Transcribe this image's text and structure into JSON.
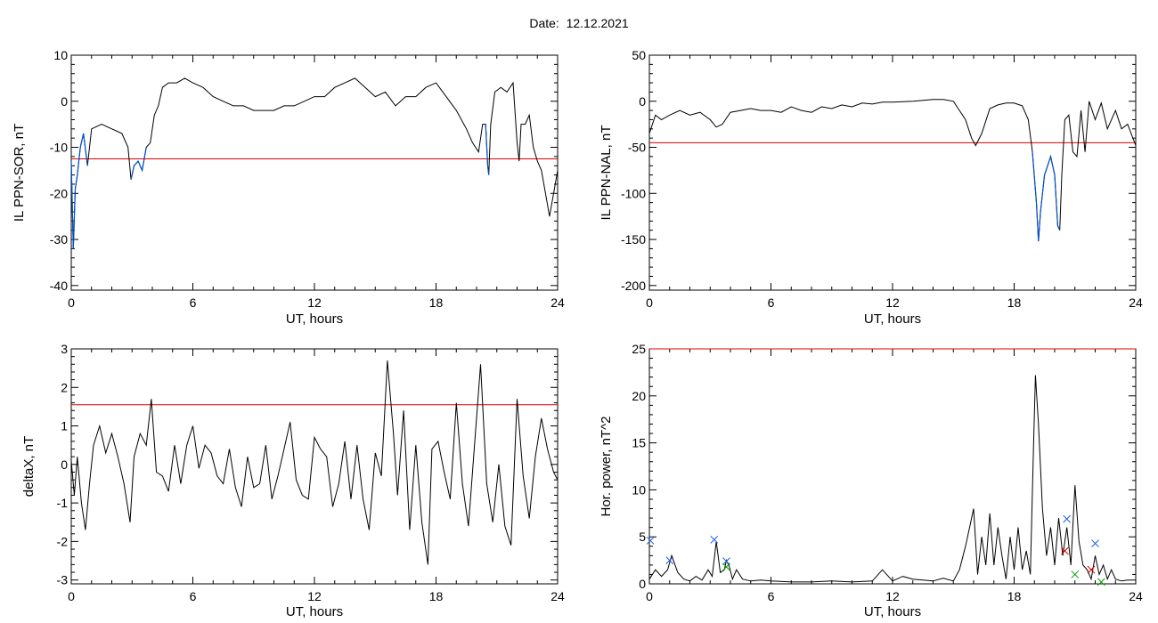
{
  "page": {
    "title": "Date:  12.12.2021"
  },
  "colors": {
    "trace": "#000000",
    "threshold": "#e00000",
    "highlight": "#0050c8",
    "marker_blue": "#2060e0",
    "marker_red": "#e00000",
    "marker_green": "#00a000"
  },
  "chart_data": [
    {
      "type": "line",
      "xlabel": "UT, hours",
      "ylabel": "IL PPN-SOR, nT",
      "xlim": [
        0,
        24
      ],
      "ylim": [
        -41,
        10
      ],
      "xticks": [
        0,
        6,
        12,
        18,
        24
      ],
      "yticks": [
        -40,
        -30,
        -20,
        -10,
        0,
        10
      ],
      "threshold": -12.5,
      "series": [
        {
          "x": [
            0,
            0.1,
            0.2,
            0.3,
            0.45,
            0.6,
            0.8,
            1,
            1.5,
            2,
            2.5,
            2.8,
            2.95,
            3.1,
            3.3,
            3.5,
            3.7,
            3.9,
            4.1,
            4.3,
            4.5,
            4.8,
            5.2,
            5.6,
            6,
            6.5,
            7,
            7.5,
            8,
            8.5,
            9,
            9.5,
            10,
            10.5,
            11,
            11.5,
            12,
            12.5,
            13,
            13.5,
            14,
            14.5,
            15,
            15.5,
            16,
            16.5,
            17,
            17.5,
            18,
            18.5,
            19,
            19.5,
            19.8,
            20.1,
            20.3,
            20.45,
            20.55,
            20.6,
            20.7,
            20.9,
            21.2,
            21.5,
            21.8,
            22,
            22.1,
            22.2,
            22.4,
            22.6,
            22.8,
            23,
            23.2,
            23.4,
            23.6,
            23.8,
            24
          ],
          "y": [
            -13,
            -32,
            -19,
            -16,
            -10,
            -7,
            -14,
            -6,
            -5,
            -6,
            -7,
            -10,
            -17,
            -14,
            -13,
            -15,
            -10,
            -9,
            -3,
            -1,
            3,
            4,
            4,
            5,
            4,
            3,
            1,
            0,
            -1,
            -1,
            -2,
            -2,
            -2,
            -1,
            -1,
            0,
            1,
            1,
            3,
            4,
            5,
            3,
            1,
            2,
            -1,
            1,
            1,
            3,
            4,
            1,
            -2,
            -6,
            -9,
            -11,
            -5,
            -5,
            -14,
            -16,
            -5,
            2,
            3,
            2,
            4,
            -9,
            -13,
            -5,
            -5,
            -3,
            -10,
            -13,
            -15,
            -20,
            -25,
            -20,
            -15
          ],
          "highlight": [
            [
              0,
              0.8
            ],
            [
              2.9,
              3.7
            ],
            [
              20.45,
              20.65
            ]
          ]
        }
      ]
    },
    {
      "type": "line",
      "xlabel": "UT, hours",
      "ylabel": "IL PPN-NAL, nT",
      "xlim": [
        0,
        24
      ],
      "ylim": [
        -205,
        50
      ],
      "xticks": [
        0,
        6,
        12,
        18,
        24
      ],
      "yticks": [
        -200,
        -150,
        -100,
        -50,
        0,
        50
      ],
      "threshold": -45,
      "series": [
        {
          "x": [
            0,
            0.3,
            0.6,
            1,
            1.5,
            2,
            2.5,
            3,
            3.3,
            3.6,
            4,
            4.5,
            5,
            5.5,
            6,
            6.5,
            7,
            7.5,
            8,
            8.5,
            9,
            9.5,
            10,
            10.5,
            11,
            11.5,
            12,
            13,
            14,
            14.5,
            15,
            15.3,
            15.6,
            15.9,
            16.1,
            16.4,
            16.8,
            17.2,
            17.6,
            18,
            18.4,
            18.7,
            18.9,
            19.1,
            19.2,
            19.3,
            19.5,
            19.8,
            20,
            20.15,
            20.25,
            20.35,
            20.5,
            20.7,
            20.9,
            21.1,
            21.3,
            21.5,
            21.7,
            22,
            22.3,
            22.6,
            23,
            23.3,
            23.6,
            24
          ],
          "y": [
            -35,
            -15,
            -20,
            -15,
            -10,
            -15,
            -12,
            -20,
            -28,
            -25,
            -12,
            -10,
            -8,
            -10,
            -10,
            -12,
            -6,
            -10,
            -12,
            -6,
            -8,
            -4,
            -6,
            -2,
            -3,
            -1,
            -1,
            0,
            2,
            2,
            0,
            -10,
            -20,
            -40,
            -48,
            -35,
            -8,
            -4,
            -2,
            -2,
            -5,
            -20,
            -55,
            -110,
            -152,
            -120,
            -80,
            -60,
            -80,
            -135,
            -140,
            -80,
            -20,
            -15,
            -55,
            -60,
            -10,
            -55,
            0,
            -20,
            -2,
            -30,
            -10,
            -30,
            -25,
            -48
          ],
          "highlight": [
            [
              16,
              16.3
            ],
            [
              18.8,
              20.3
            ]
          ]
        }
      ]
    },
    {
      "type": "line",
      "xlabel": "UT, hours",
      "ylabel": "deltaX, nT",
      "xlim": [
        0,
        24
      ],
      "ylim": [
        -3.1,
        3
      ],
      "xticks": [
        0,
        6,
        12,
        18,
        24
      ],
      "yticks": [
        -3,
        -2,
        -1,
        0,
        1,
        2,
        3
      ],
      "threshold": 1.55,
      "series": [
        {
          "x": [
            0,
            0.15,
            0.3,
            0.5,
            0.7,
            0.9,
            1.1,
            1.4,
            1.7,
            2,
            2.3,
            2.6,
            2.9,
            3.1,
            3.4,
            3.7,
            3.95,
            4.2,
            4.5,
            4.8,
            5.1,
            5.4,
            5.7,
            6,
            6.3,
            6.6,
            6.9,
            7.2,
            7.5,
            7.8,
            8.1,
            8.4,
            8.7,
            9,
            9.3,
            9.6,
            9.9,
            10.2,
            10.5,
            10.8,
            11.1,
            11.4,
            11.7,
            12,
            12.3,
            12.6,
            12.9,
            13.2,
            13.5,
            13.8,
            14.1,
            14.4,
            14.7,
            15,
            15.3,
            15.6,
            15.9,
            16.1,
            16.4,
            16.7,
            17,
            17.3,
            17.6,
            17.8,
            18.1,
            18.4,
            18.7,
            19,
            19.3,
            19.6,
            19.9,
            20.2,
            20.5,
            20.8,
            21.1,
            21.4,
            21.7,
            22,
            22.3,
            22.6,
            22.9,
            23.2,
            23.5,
            23.8,
            24
          ],
          "y": [
            0.1,
            -0.8,
            0.2,
            -1,
            -1.7,
            -0.5,
            0.5,
            1,
            0.3,
            0.8,
            0.2,
            -0.5,
            -1.5,
            0.2,
            0.8,
            0.5,
            1.7,
            -0.2,
            -0.3,
            -0.7,
            0.5,
            -0.5,
            0.5,
            1,
            -0.1,
            0.5,
            0.3,
            -0.3,
            -0.5,
            0.4,
            -0.6,
            -1.1,
            0.2,
            -0.6,
            -0.5,
            0.5,
            -0.9,
            -0.3,
            0.4,
            1.1,
            -0.4,
            -0.8,
            -0.9,
            0.7,
            0.4,
            0.2,
            -1.1,
            -0.5,
            0.6,
            -0.9,
            0.5,
            -0.9,
            -1.7,
            0.3,
            -0.3,
            2.7,
            0.8,
            -0.8,
            1.4,
            -1.7,
            0.5,
            -1.5,
            -2.6,
            0.4,
            0.6,
            -0.2,
            -0.9,
            1.6,
            -0.5,
            -1.6,
            0.5,
            2.6,
            -0.5,
            -1.5,
            0,
            -1.6,
            -2.1,
            1.7,
            -0.3,
            -1.4,
            0.2,
            1.2,
            0.4,
            -0.2,
            -0.4
          ]
        }
      ]
    },
    {
      "type": "line",
      "xlabel": "UT, hours",
      "ylabel": "Hor. power, nT^2",
      "xlim": [
        0,
        24
      ],
      "ylim": [
        0,
        25
      ],
      "xticks": [
        0,
        6,
        12,
        18,
        24
      ],
      "yticks": [
        0,
        5,
        10,
        15,
        20,
        25
      ],
      "threshold": 25,
      "series": [
        {
          "x": [
            0,
            0.3,
            0.6,
            0.9,
            1.1,
            1.4,
            1.7,
            2,
            2.3,
            2.6,
            2.9,
            3.1,
            3.3,
            3.5,
            3.7,
            3.8,
            3.95,
            4.1,
            4.3,
            4.6,
            5,
            5.5,
            6,
            7,
            8,
            9,
            10,
            11,
            11.5,
            12,
            12.5,
            13,
            14,
            14.5,
            15,
            15.3,
            15.6,
            15.8,
            16,
            16.2,
            16.4,
            16.6,
            16.8,
            17,
            17.2,
            17.4,
            17.6,
            17.8,
            18,
            18.2,
            18.4,
            18.6,
            18.8,
            18.95,
            19.05,
            19.2,
            19.4,
            19.6,
            19.8,
            20,
            20.2,
            20.4,
            20.6,
            20.8,
            21,
            21.2,
            21.4,
            21.6,
            21.8,
            22,
            22.2,
            22.4,
            22.6,
            22.8,
            23,
            23.3,
            23.6,
            24
          ],
          "y": [
            0.5,
            1.5,
            0.8,
            1.5,
            3,
            1.2,
            0.5,
            0.3,
            0.8,
            0.4,
            1.5,
            0.8,
            4.5,
            1.2,
            1.5,
            2.5,
            1.8,
            0.5,
            1.5,
            0.5,
            0.3,
            0.4,
            0.3,
            0.2,
            0.2,
            0.3,
            0.2,
            0.3,
            1.5,
            0.3,
            0.8,
            0.5,
            0.3,
            0.6,
            0.3,
            1.5,
            4,
            6,
            8,
            1,
            5,
            2,
            7.5,
            2,
            6,
            3,
            0.5,
            5,
            1.5,
            6,
            1.5,
            3.5,
            1,
            14,
            22.2,
            17,
            8,
            3,
            6,
            2,
            7,
            3,
            6,
            2,
            10.5,
            4.5,
            2,
            1.5,
            0.5,
            3,
            1,
            2,
            0.5,
            1.5,
            0.5,
            0.3,
            0.4,
            0.4
          ]
        }
      ],
      "markers": [
        {
          "color": "blue",
          "x": [
            0.05,
            1,
            3.2,
            3.8,
            20.6,
            22
          ],
          "y": [
            4.6,
            2.5,
            4.7,
            2.4,
            6.9,
            4.3
          ]
        },
        {
          "color": "red",
          "x": [
            20.5,
            21.8
          ],
          "y": [
            3.5,
            1.5
          ]
        },
        {
          "color": "green",
          "x": [
            3.8,
            21,
            22.3
          ],
          "y": [
            1.8,
            1,
            0.2
          ]
        }
      ]
    }
  ]
}
